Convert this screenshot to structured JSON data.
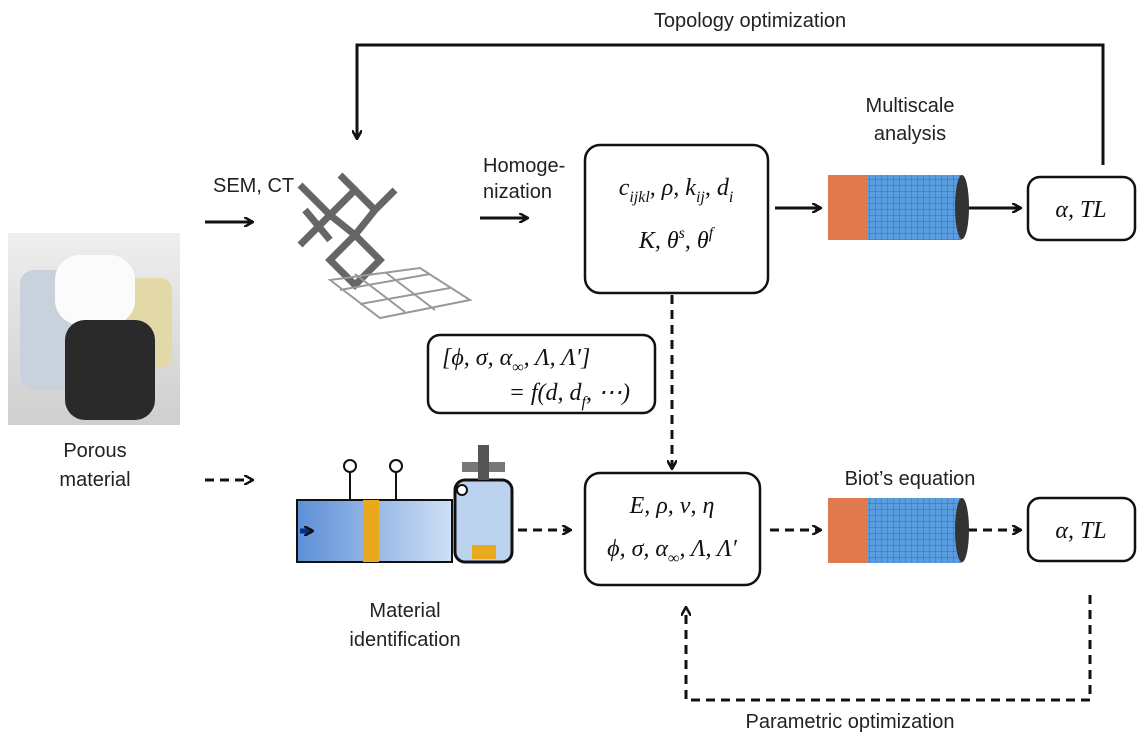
{
  "topology_label": "Topology optimization",
  "sem_label": "SEM, CT",
  "homogenization_label": [
    "Homoge-",
    "nization"
  ],
  "multiscale_label": [
    "Multiscale",
    "analysis"
  ],
  "homogenized_box": [
    [
      {
        "text": "c"
      },
      {
        "sub": "ijkl"
      },
      {
        "text": ", ρ, k"
      },
      {
        "sub": "ij"
      },
      {
        "text": ", d"
      },
      {
        "sub": "i"
      }
    ],
    [
      {
        "text": "K, θ"
      },
      {
        "sup": "s"
      },
      {
        "text": ", θ"
      },
      {
        "sup": "f"
      }
    ]
  ],
  "output_top": "α, TL",
  "porous_label": [
    "Porous",
    "material"
  ],
  "relation_box": [
    [
      {
        "text": "[ϕ, σ, α"
      },
      {
        "sub": "∞"
      },
      {
        "text": ", Λ, Λ′]"
      }
    ],
    [
      {
        "text": "= f(d, d"
      },
      {
        "sub": "f"
      },
      {
        "text": ", ⋯)"
      }
    ]
  ],
  "identification_label": [
    "Material",
    "identification"
  ],
  "parameter_box": [
    [
      {
        "text": "E, ρ, ν, η"
      }
    ],
    [
      {
        "text": "ϕ, σ, α"
      },
      {
        "sub": "∞"
      },
      {
        "text": ", Λ, Λ′"
      }
    ]
  ],
  "biot_label": "Biot’s equation",
  "output_bottom": "α, TL",
  "parametric_label": "Parametric optimization"
}
